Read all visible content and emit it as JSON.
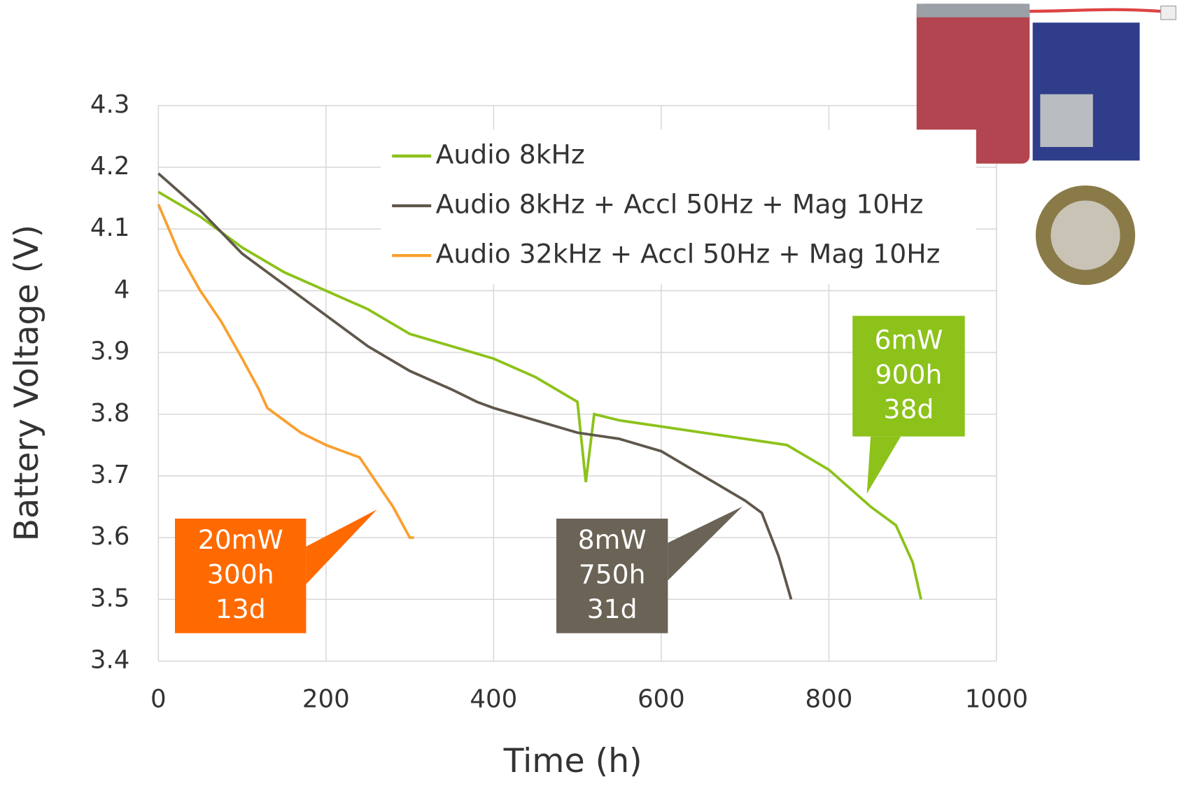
{
  "chart_data": {
    "type": "line",
    "xlabel": "Time (h)",
    "ylabel": "Battery Voltage (V)",
    "xlim": [
      0,
      1000
    ],
    "xticks": [
      0,
      200,
      400,
      600,
      800,
      1000
    ],
    "ylim": [
      3.4,
      4.3
    ],
    "yticks": [
      3.4,
      3.5,
      3.6,
      3.7,
      3.8,
      3.9,
      4,
      4.1,
      4.2,
      4.3
    ],
    "grid": true,
    "legend": "upper center",
    "series": [
      {
        "name": "Audio 8kHz",
        "color": "#8cc21a",
        "x": [
          0,
          50,
          100,
          150,
          200,
          250,
          300,
          350,
          400,
          450,
          500,
          510,
          520,
          550,
          600,
          650,
          700,
          750,
          800,
          850,
          880,
          900,
          910
        ],
        "values": [
          4.16,
          4.12,
          4.07,
          4.03,
          4.0,
          3.97,
          3.93,
          3.91,
          3.89,
          3.86,
          3.82,
          3.69,
          3.8,
          3.79,
          3.78,
          3.77,
          3.76,
          3.75,
          3.71,
          3.65,
          3.62,
          3.56,
          3.5
        ]
      },
      {
        "name": "Audio 8kHz + Accl 50Hz + Mag 10Hz",
        "color": "#5f574c",
        "x": [
          0,
          50,
          100,
          150,
          200,
          250,
          300,
          350,
          380,
          400,
          450,
          500,
          550,
          600,
          650,
          700,
          720,
          740,
          755
        ],
        "values": [
          4.19,
          4.13,
          4.06,
          4.01,
          3.96,
          3.91,
          3.87,
          3.84,
          3.82,
          3.81,
          3.79,
          3.77,
          3.76,
          3.74,
          3.7,
          3.66,
          3.64,
          3.57,
          3.5
        ]
      },
      {
        "name": "Audio 32kHz + Accl 50Hz + Mag 10Hz",
        "color": "#f9a030",
        "x": [
          0,
          25,
          50,
          75,
          100,
          120,
          130,
          150,
          170,
          200,
          240,
          260,
          280,
          300,
          305
        ],
        "values": [
          4.14,
          4.06,
          4.0,
          3.95,
          3.89,
          3.84,
          3.81,
          3.79,
          3.77,
          3.75,
          3.73,
          3.69,
          3.65,
          3.6,
          3.6
        ]
      }
    ],
    "annotations": [
      {
        "lines": [
          "20mW",
          "300h",
          "13d"
        ],
        "color": "#ff6a00"
      },
      {
        "lines": [
          "8mW",
          "750h",
          "31d"
        ],
        "color": "#6b6356"
      },
      {
        "lines": [
          "6mW",
          "900h",
          "38d"
        ],
        "color": "#8cc21a"
      }
    ]
  }
}
